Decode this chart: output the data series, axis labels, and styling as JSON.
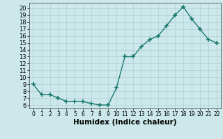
{
  "x": [
    0,
    1,
    2,
    3,
    4,
    5,
    6,
    7,
    8,
    9,
    10,
    11,
    12,
    13,
    14,
    15,
    16,
    17,
    18,
    19,
    20,
    21,
    22
  ],
  "y": [
    9.0,
    7.5,
    7.5,
    7.0,
    6.5,
    6.5,
    6.5,
    6.2,
    6.0,
    6.0,
    8.5,
    13.0,
    13.0,
    14.5,
    15.5,
    16.0,
    17.5,
    19.0,
    20.2,
    18.5,
    17.0,
    15.5,
    15.0
  ],
  "line_color": "#1a7a6e",
  "marker_color": "#1a7a6e",
  "bg_color": "#cce8ea",
  "grid_color": "#b0d0d4",
  "xlabel": "Humidex (Indice chaleur)",
  "xlim": [
    -0.5,
    22.5
  ],
  "ylim": [
    5.5,
    20.8
  ],
  "yticks": [
    6,
    7,
    8,
    9,
    10,
    11,
    12,
    13,
    14,
    15,
    16,
    17,
    18,
    19,
    20
  ],
  "xticks": [
    0,
    1,
    2,
    3,
    4,
    5,
    6,
    7,
    8,
    9,
    10,
    11,
    12,
    13,
    14,
    15,
    16,
    17,
    18,
    19,
    20,
    21,
    22
  ],
  "ytick_fontsize": 6,
  "xtick_fontsize": 5.5,
  "xlabel_fontsize": 7.5,
  "marker_size": 4,
  "line_width": 1.0
}
